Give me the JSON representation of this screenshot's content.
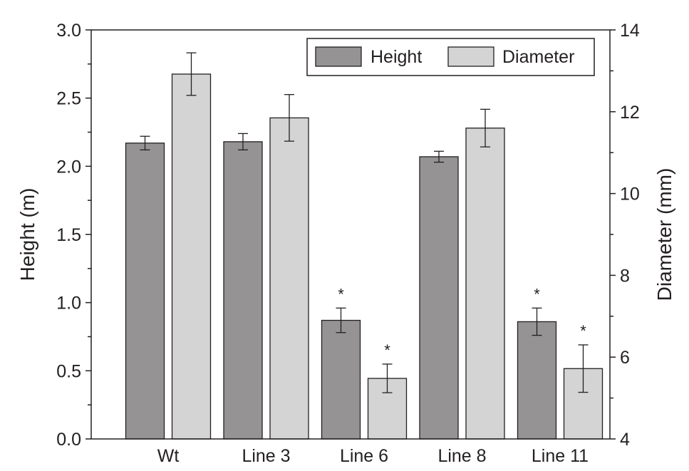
{
  "chart_data": {
    "type": "bar",
    "categories": [
      "Wt",
      "Line 3",
      "Line 6",
      "Line 8",
      "Line 11"
    ],
    "series": [
      {
        "name": "Height",
        "axis": "left",
        "color": "#959394",
        "values": [
          2.17,
          2.18,
          0.87,
          2.07,
          0.86
        ],
        "errors": [
          0.05,
          0.06,
          0.09,
          0.04,
          0.1
        ],
        "significance": [
          "",
          "",
          "*",
          "",
          "*"
        ]
      },
      {
        "name": "Diameter",
        "axis": "right",
        "color": "#d4d4d4",
        "values": [
          12.92,
          11.85,
          5.48,
          11.6,
          5.72
        ],
        "errors": [
          0.52,
          0.57,
          0.35,
          0.46,
          0.58
        ],
        "significance": [
          "",
          "",
          "*",
          "",
          "*"
        ]
      }
    ],
    "y_left": {
      "label": "Height (m)",
      "lim": [
        0.0,
        3.0
      ],
      "ticks": [
        "0.0",
        "0.5",
        "1.0",
        "1.5",
        "2.0",
        "2.5",
        "3.0"
      ]
    },
    "y_right": {
      "label": "Diameter (mm)",
      "lim": [
        4,
        14
      ],
      "ticks": [
        "4",
        "6",
        "8",
        "10",
        "12",
        "14"
      ]
    },
    "legend": {
      "position": "top-right",
      "entries": [
        "Height",
        "Diameter"
      ]
    },
    "grid": false
  }
}
